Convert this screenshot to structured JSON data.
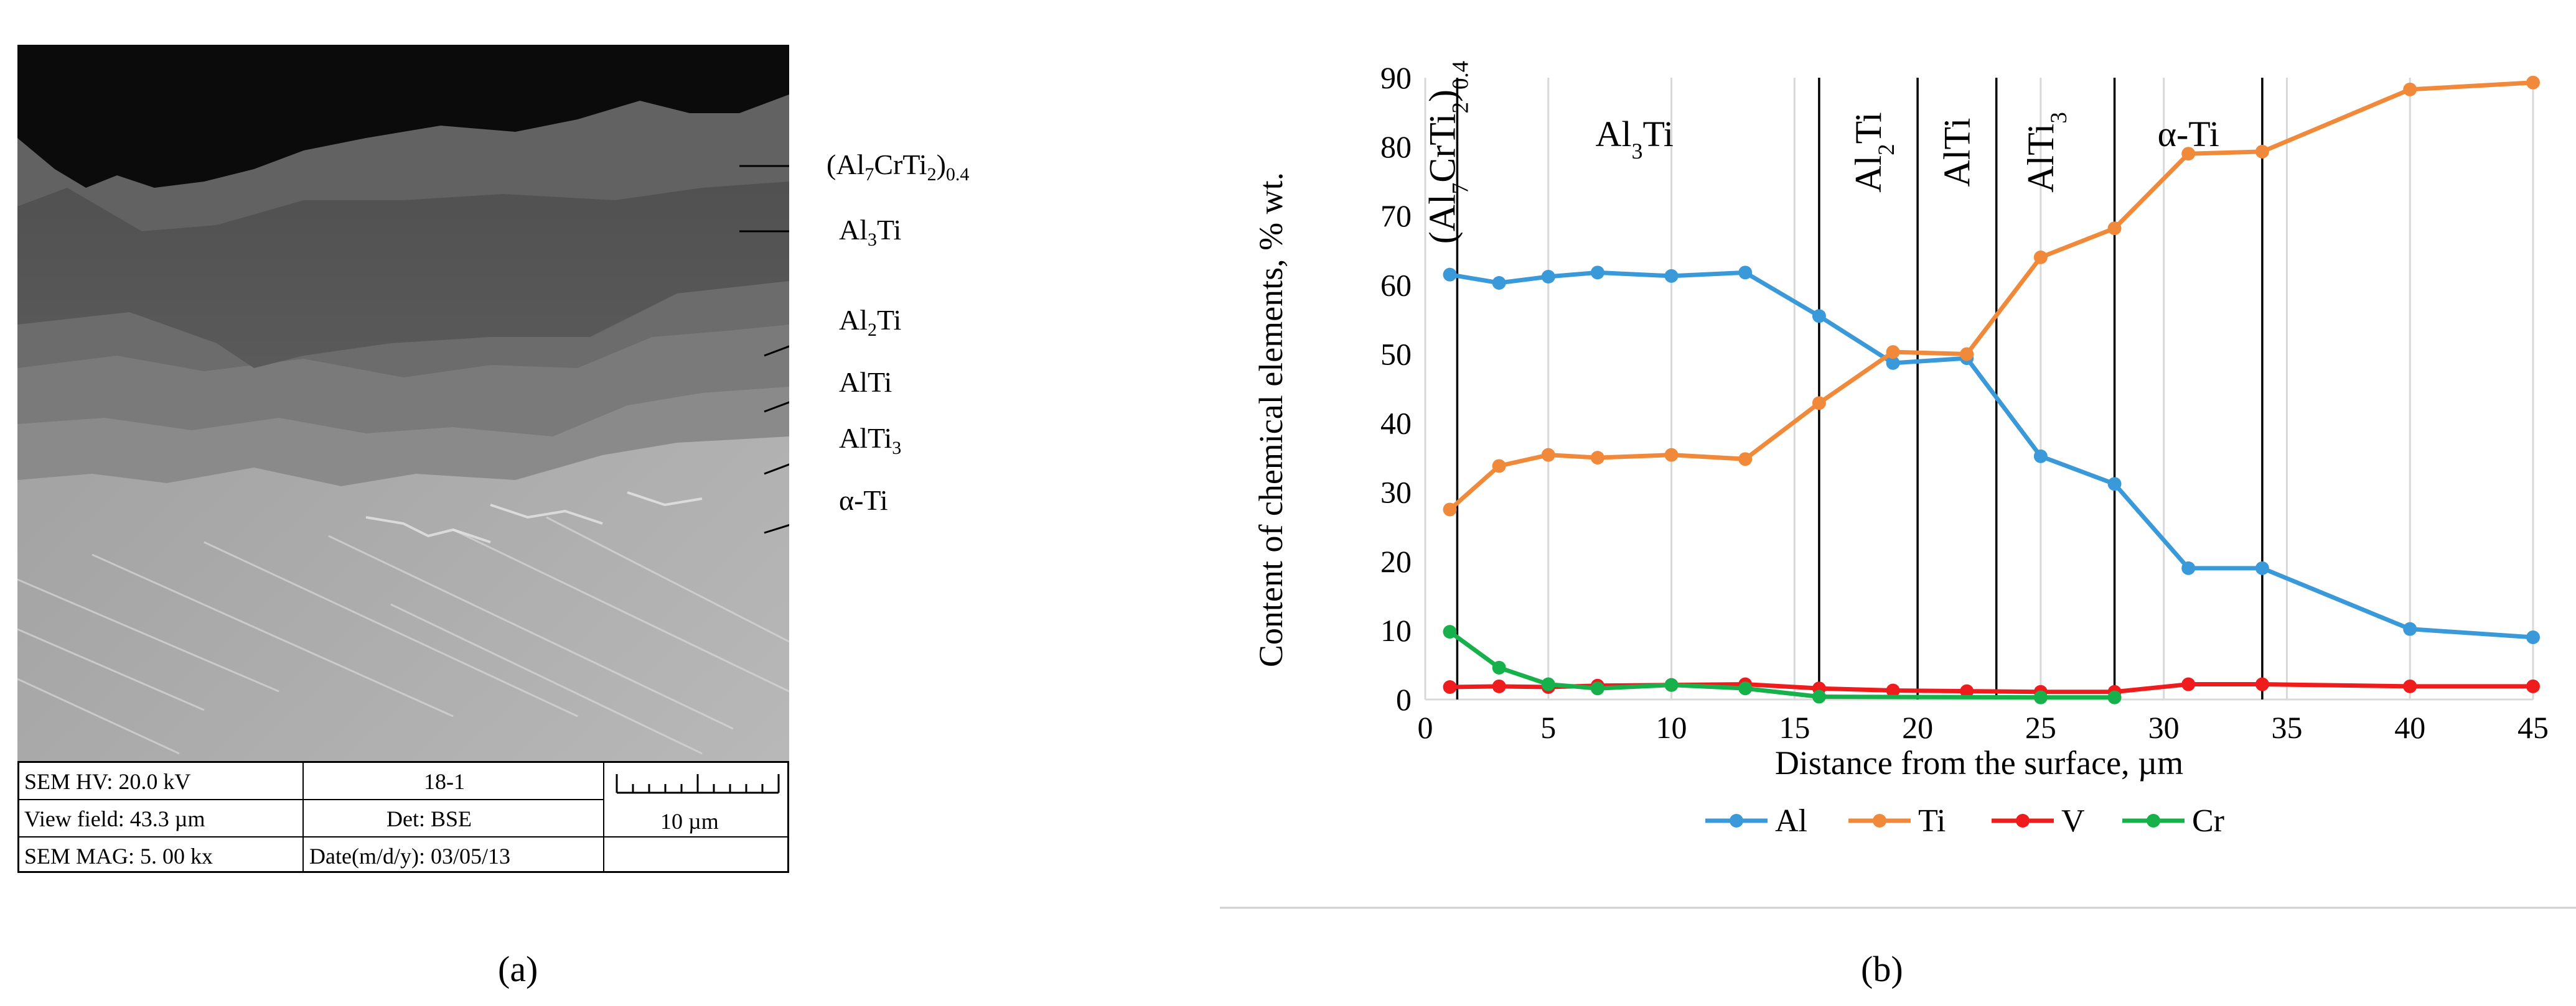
{
  "panel_a": {
    "caption": "(a)",
    "image_description_icon": "sem-micrograph-icon",
    "phase_labels": [
      {
        "pre": "(Al",
        "s1": "7",
        "mid": "CrTi",
        "s2": "2",
        "post": ")",
        "s3": "0.4"
      },
      {
        "pre": "Al",
        "s1": "3",
        "mid": "Ti",
        "s2": "",
        "post": "",
        "s3": ""
      },
      {
        "pre": "Al",
        "s1": "2",
        "mid": "Ti",
        "s2": "",
        "post": "",
        "s3": ""
      },
      {
        "pre": "AlTi",
        "s1": "",
        "mid": "",
        "s2": "",
        "post": "",
        "s3": ""
      },
      {
        "pre": "AlTi",
        "s1": "3",
        "mid": "",
        "s2": "",
        "post": "",
        "s3": ""
      },
      {
        "pre": "α-Ti",
        "s1": "",
        "mid": "",
        "s2": "",
        "post": "",
        "s3": ""
      }
    ],
    "info": {
      "hv": "SEM HV: 20.0 kV",
      "sample": "18-1",
      "view_field": "View field: 43.3 µm",
      "detector": "Det: BSE",
      "mag": "SEM MAG: 5. 00 kx",
      "date": "Date(m/d/y): 03/05/13",
      "scale_bar": "10 µm"
    }
  },
  "panel_b": {
    "caption": "(b)"
  },
  "chart_data": {
    "type": "line",
    "title": "",
    "xlabel": "Distance from the surface, µm",
    "ylabel": "Content of chemical elements, %  wt.",
    "xlim": [
      0,
      45
    ],
    "ylim": [
      0,
      90
    ],
    "x_ticks": [
      0,
      5,
      10,
      15,
      20,
      25,
      30,
      35,
      40,
      45
    ],
    "y_ticks": [
      0,
      10,
      20,
      30,
      40,
      50,
      60,
      70,
      80,
      90
    ],
    "grid": "vertical",
    "legend_position": "bottom",
    "series": [
      {
        "name": "Al",
        "color": "#3a9ad9",
        "x": [
          1,
          3,
          5,
          7,
          10,
          13,
          16,
          19,
          22,
          25,
          28,
          31,
          34,
          40,
          45
        ],
        "y": [
          61.5,
          60.3,
          61.2,
          61.8,
          61.3,
          61.8,
          55.5,
          48.7,
          49.4,
          35.2,
          31.2,
          19.0,
          19.0,
          10.2,
          9.0
        ]
      },
      {
        "name": "Ti",
        "color": "#f08a3a",
        "x": [
          1,
          3,
          5,
          7,
          10,
          13,
          16,
          19,
          22,
          25,
          28,
          31,
          34,
          40,
          45
        ],
        "y": [
          27.5,
          33.8,
          35.4,
          35.0,
          35.4,
          34.8,
          42.9,
          50.3,
          50.0,
          64.0,
          68.2,
          79.0,
          79.3,
          88.3,
          89.3
        ]
      },
      {
        "name": "V",
        "color": "#ee1c1c",
        "x": [
          1,
          3,
          5,
          7,
          10,
          13,
          16,
          19,
          22,
          25,
          28,
          31,
          34,
          40,
          45
        ],
        "y": [
          1.8,
          1.9,
          1.8,
          2.0,
          2.1,
          2.2,
          1.6,
          1.3,
          1.2,
          1.1,
          1.1,
          2.2,
          2.2,
          1.9,
          1.9
        ]
      },
      {
        "name": "Cr",
        "color": "#17b14b",
        "x": [
          1,
          3,
          5,
          7,
          10,
          13,
          16,
          25,
          28
        ],
        "y": [
          9.8,
          4.6,
          2.2,
          1.6,
          2.1,
          1.6,
          0.4,
          0.3,
          0.3
        ]
      }
    ],
    "phase_boundaries_x": [
      1.3,
      16.0,
      20.0,
      23.2,
      28.0,
      34.0
    ],
    "phase_regions": [
      {
        "x_center": 0.7,
        "label": "(Al7CrTi2)0.4",
        "pre": "(Al",
        "s1": "7",
        "mid": "CrTi",
        "s2": "2",
        "post": ")",
        "s3": "0.4",
        "orientation": "vertical"
      },
      {
        "x_center": 8.5,
        "label": "Al3Ti",
        "pre": "Al",
        "s1": "3",
        "mid": "Ti",
        "s2": "",
        "post": "",
        "s3": "",
        "orientation": "horizontal"
      },
      {
        "x_center": 18.0,
        "label": "Al2Ti",
        "pre": "Al",
        "s1": "2",
        "mid": "Ti",
        "s2": "",
        "post": "",
        "s3": "",
        "orientation": "vertical"
      },
      {
        "x_center": 21.6,
        "label": "AlTi",
        "pre": "AlTi",
        "s1": "",
        "mid": "",
        "s2": "",
        "post": "",
        "s3": "",
        "orientation": "vertical"
      },
      {
        "x_center": 25.0,
        "label": "AlTi3",
        "pre": "AlTi",
        "s1": "3",
        "mid": "",
        "s2": "",
        "post": "",
        "s3": "",
        "orientation": "vertical"
      },
      {
        "x_center": 31.0,
        "label": "α-Ti",
        "pre": "α-Ti",
        "s1": "",
        "mid": "",
        "s2": "",
        "post": "",
        "s3": "",
        "orientation": "horizontal"
      }
    ]
  }
}
